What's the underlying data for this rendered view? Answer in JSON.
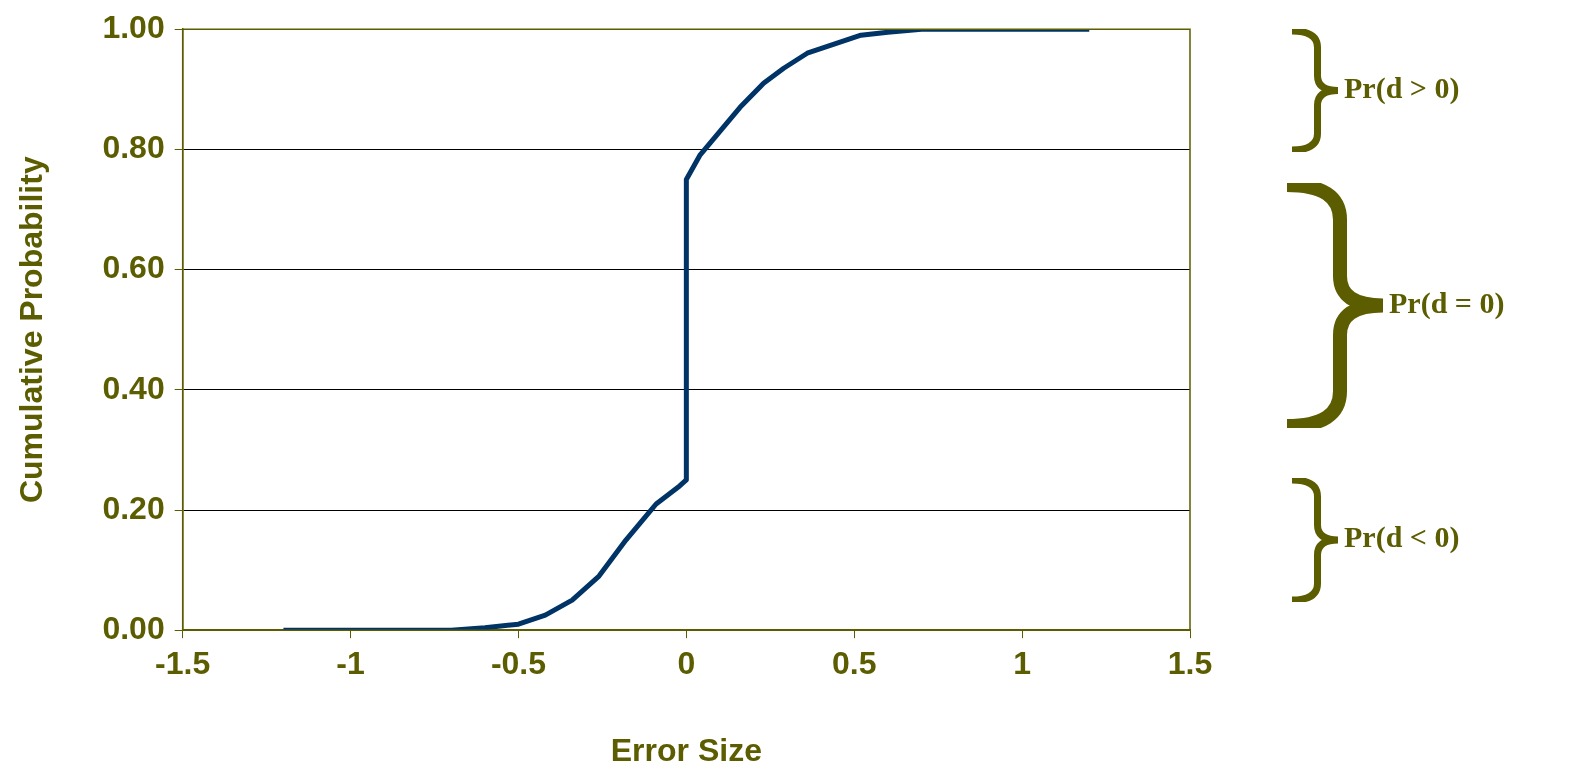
{
  "chart_data": {
    "type": "line",
    "xlabel": "Error Size",
    "ylabel": "Cumulative Probability",
    "x": [
      -1.2,
      -0.7,
      -0.6,
      -0.5,
      -0.42,
      -0.34,
      -0.26,
      -0.18,
      -0.09,
      -0.02,
      0,
      0,
      0.04,
      0.1,
      0.16,
      0.23,
      0.29,
      0.36,
      0.44,
      0.52,
      0.6,
      0.7,
      1.2
    ],
    "series": [
      {
        "color": "#003366",
        "values": [
          0,
          0,
          0.004,
          0.01,
          0.025,
          0.05,
          0.09,
          0.15,
          0.21,
          0.24,
          0.25,
          0.75,
          0.79,
          0.83,
          0.87,
          0.91,
          0.935,
          0.96,
          0.975,
          0.99,
          0.995,
          1,
          1
        ]
      }
    ],
    "xlim": [
      -1.5,
      1.5
    ],
    "xticks": [
      -1.5,
      -1,
      -0.5,
      0,
      0.5,
      1,
      1.5
    ],
    "ylim": [
      0,
      1
    ],
    "yticks": [
      {
        "value": 0,
        "label": "0.00"
      },
      {
        "value": 0.2,
        "label": "0.20"
      },
      {
        "value": 0.4,
        "label": "0.40"
      },
      {
        "value": 0.6,
        "label": "0.60"
      },
      {
        "value": 0.8,
        "label": "0.80"
      },
      {
        "value": 1,
        "label": "1.00"
      }
    ],
    "grid": "y",
    "legend": false,
    "marker": "none",
    "line_style": "solid",
    "annotations": [
      "Pr(d > 0)",
      "Pr(d = 0)",
      "Pr(d < 0)"
    ]
  }
}
